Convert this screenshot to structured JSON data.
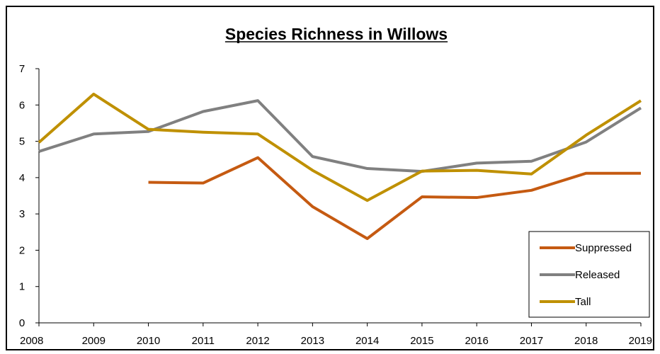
{
  "chart_data": {
    "type": "line",
    "title": "Species Richness in Willows",
    "xlabel": "",
    "ylabel": "",
    "categories": [
      "2008",
      "2009",
      "2010",
      "2011",
      "2012",
      "2013",
      "2014",
      "2015",
      "2016",
      "2017",
      "2018",
      "2019"
    ],
    "ylim": [
      0,
      7
    ],
    "yticks": [
      "0",
      "1",
      "2",
      "3",
      "4",
      "5",
      "6",
      "7"
    ],
    "grid": false,
    "legend_position": "bottom-right",
    "series": [
      {
        "name": "Suppressed",
        "color": "#C55A11",
        "values": [
          null,
          null,
          3.87,
          3.85,
          4.55,
          3.2,
          2.32,
          3.47,
          3.45,
          3.65,
          4.12,
          4.12
        ]
      },
      {
        "name": "Released",
        "color": "#808080",
        "values": [
          4.72,
          5.2,
          5.27,
          5.82,
          6.12,
          4.58,
          4.25,
          4.17,
          4.4,
          4.45,
          4.98,
          5.92
        ]
      },
      {
        "name": "Tall",
        "color": "#BF9000",
        "values": [
          4.97,
          6.3,
          5.33,
          5.25,
          5.2,
          4.2,
          3.37,
          4.18,
          4.2,
          4.1,
          5.17,
          6.12
        ]
      }
    ]
  }
}
